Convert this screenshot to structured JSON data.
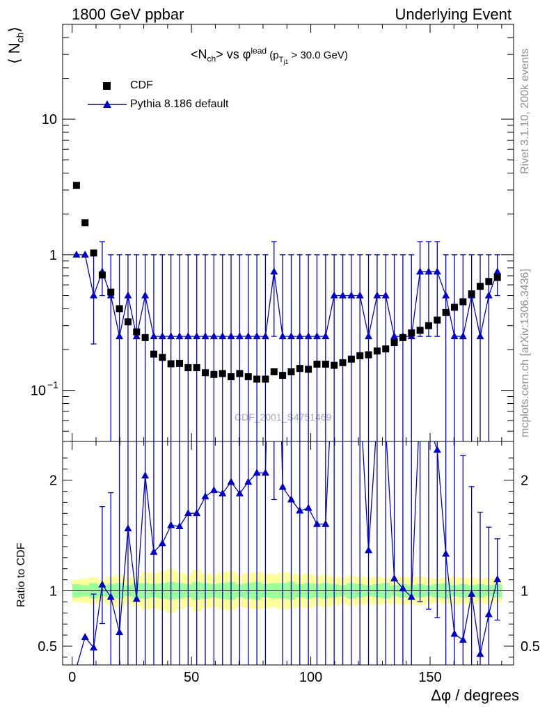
{
  "header": {
    "left": "1800 GeV ppbar",
    "right": "Underlying Event"
  },
  "side": {
    "rivet": "Rivet 3.1.10,  200k events",
    "mcplots": "mcplots.cern.ch [arXiv:1306.3436]"
  },
  "chart_data": {
    "type": "scatter",
    "title": "<Nch> vs φlead (pTj1 > 30.0 GeV)",
    "title_parts": {
      "a": "<N",
      "b": "ch",
      "c": "> vs ",
      "d": "φ",
      "e": "lead",
      "f": " (p",
      "g": "T",
      "h": "j1",
      "i": " > 30.0 GeV)"
    },
    "ylabel": "⟨ Nch⟩",
    "ylabel_parts": {
      "a": "⟨ N",
      "b": "ch",
      "c": "⟩"
    },
    "xlabel": "Δφ / degrees",
    "ratio_ylabel": "Ratio to CDF",
    "watermark": "CDF_2001_S4751469",
    "legend": [
      {
        "name": "CDF",
        "marker": "square",
        "color": "#000000"
      },
      {
        "name": "Pythia 8.186 default",
        "marker": "triangle",
        "color": "#0000cc"
      }
    ],
    "xlim": [
      -4,
      185
    ],
    "ylim_log": [
      0.042,
      50
    ],
    "ratio_ylim": [
      0.33,
      2.35
    ],
    "x_ticks": [
      0,
      50,
      100,
      150
    ],
    "y_ticks": [
      {
        "v": 10,
        "label": "10"
      },
      {
        "v": 1,
        "label": "1"
      },
      {
        "v": 0.1,
        "label": "10",
        "sup": "−1"
      }
    ],
    "ratio_ticks": [
      {
        "v": 0.5,
        "label": "0.5"
      },
      {
        "v": 1,
        "label": "1"
      },
      {
        "v": 2,
        "label": "2"
      }
    ],
    "x": [
      1.8,
      5.4,
      9.0,
      12.6,
      16.2,
      19.8,
      23.4,
      27.0,
      30.6,
      34.2,
      37.8,
      41.4,
      45.0,
      48.6,
      52.2,
      55.8,
      59.4,
      63.0,
      66.6,
      70.2,
      73.8,
      77.4,
      81.0,
      84.6,
      88.2,
      91.8,
      95.4,
      99.0,
      102.6,
      106.2,
      109.8,
      113.4,
      117.0,
      120.6,
      124.2,
      127.8,
      131.4,
      135.0,
      138.6,
      142.2,
      145.8,
      149.4,
      153.0,
      156.6,
      160.2,
      163.8,
      167.4,
      171.0,
      174.6,
      178.2
    ],
    "series": [
      {
        "name": "CDF",
        "values": [
          3.25,
          1.72,
          1.03,
          0.71,
          0.53,
          0.4,
          0.32,
          0.27,
          0.245,
          0.185,
          0.175,
          0.157,
          0.158,
          0.147,
          0.147,
          0.135,
          0.131,
          0.133,
          0.126,
          0.133,
          0.126,
          0.121,
          0.121,
          0.137,
          0.129,
          0.137,
          0.145,
          0.143,
          0.156,
          0.156,
          0.153,
          0.16,
          0.17,
          0.18,
          0.183,
          0.195,
          0.202,
          0.225,
          0.245,
          0.265,
          0.277,
          0.3,
          0.33,
          0.375,
          0.41,
          0.45,
          0.515,
          0.585,
          0.635,
          0.68
        ]
      },
      {
        "name": "Pythia 8.186 default",
        "values": [
          1.0,
          1.0,
          0.5,
          0.75,
          0.5,
          0.25,
          0.5,
          0.25,
          0.5,
          0.25,
          0.25,
          0.25,
          0.25,
          0.25,
          0.25,
          0.25,
          0.25,
          0.25,
          0.25,
          0.25,
          0.25,
          0.25,
          0.25,
          0.75,
          0.25,
          0.25,
          0.25,
          0.25,
          0.25,
          0.25,
          0.5,
          0.5,
          0.5,
          0.5,
          0.25,
          0.5,
          0.5,
          0.25,
          0.25,
          0.25,
          0.75,
          0.75,
          0.75,
          0.5,
          0.25,
          0.25,
          0.5,
          0.25,
          0.5,
          0.75
        ],
        "err_up": [
          0,
          0,
          0.5,
          0.5,
          0.5,
          0.75,
          0.5,
          0.75,
          0.5,
          0.75,
          0.75,
          0.75,
          0.75,
          0.75,
          0.75,
          0.75,
          0.75,
          0.75,
          0.75,
          0.75,
          0.75,
          0.75,
          0.75,
          0.5,
          0.75,
          0.75,
          0.75,
          0.75,
          0.75,
          0.75,
          0.5,
          0.5,
          0.5,
          0.5,
          0.75,
          0.5,
          0.5,
          0.75,
          0.75,
          0.75,
          0.5,
          0.5,
          0.5,
          0.5,
          0.75,
          0.75,
          0.5,
          0.75,
          0.5,
          0.25
        ],
        "err_down": [
          0,
          0,
          0.28,
          0.25,
          0.5,
          0.25,
          0.5,
          0.25,
          0.5,
          0.25,
          0.25,
          0.25,
          0.25,
          0.25,
          0.25,
          0.25,
          0.25,
          0.25,
          0.25,
          0.25,
          0.25,
          0.25,
          0.25,
          0.5,
          0.25,
          0.25,
          0.25,
          0.25,
          0.25,
          0.25,
          0.5,
          0.5,
          0.5,
          0.5,
          0.25,
          0.5,
          0.5,
          0.25,
          0.25,
          0.25,
          0.5,
          0.5,
          0.5,
          0.5,
          0.25,
          0.25,
          0.5,
          0.25,
          0.5,
          0.25
        ]
      }
    ],
    "ratio_band_inner": [
      0.06,
      0.05,
      0.07,
      0.05,
      0.06,
      0.07,
      0.05,
      0.07,
      0.07,
      0.06,
      0.07,
      0.08,
      0.07,
      0.06,
      0.08,
      0.07,
      0.06,
      0.07,
      0.08,
      0.06,
      0.07,
      0.08,
      0.06,
      0.07,
      0.07,
      0.08,
      0.06,
      0.07,
      0.06,
      0.07,
      0.06,
      0.05,
      0.07,
      0.06,
      0.05,
      0.06,
      0.07,
      0.05,
      0.06,
      0.05,
      0.06,
      0.05,
      0.06,
      0.07,
      0.05,
      0.06,
      0.05,
      0.06,
      0.05,
      0.06
    ],
    "ratio_band_outer": [
      0.1,
      0.11,
      0.12,
      0.1,
      0.13,
      0.15,
      0.12,
      0.14,
      0.17,
      0.16,
      0.18,
      0.2,
      0.17,
      0.15,
      0.19,
      0.16,
      0.15,
      0.17,
      0.18,
      0.15,
      0.16,
      0.17,
      0.16,
      0.15,
      0.17,
      0.16,
      0.15,
      0.16,
      0.14,
      0.15,
      0.13,
      0.12,
      0.14,
      0.13,
      0.12,
      0.13,
      0.12,
      0.12,
      0.13,
      0.12,
      0.13,
      0.12,
      0.11,
      0.12,
      0.13,
      0.12,
      0.12,
      0.11,
      0.12,
      0.11
    ]
  }
}
